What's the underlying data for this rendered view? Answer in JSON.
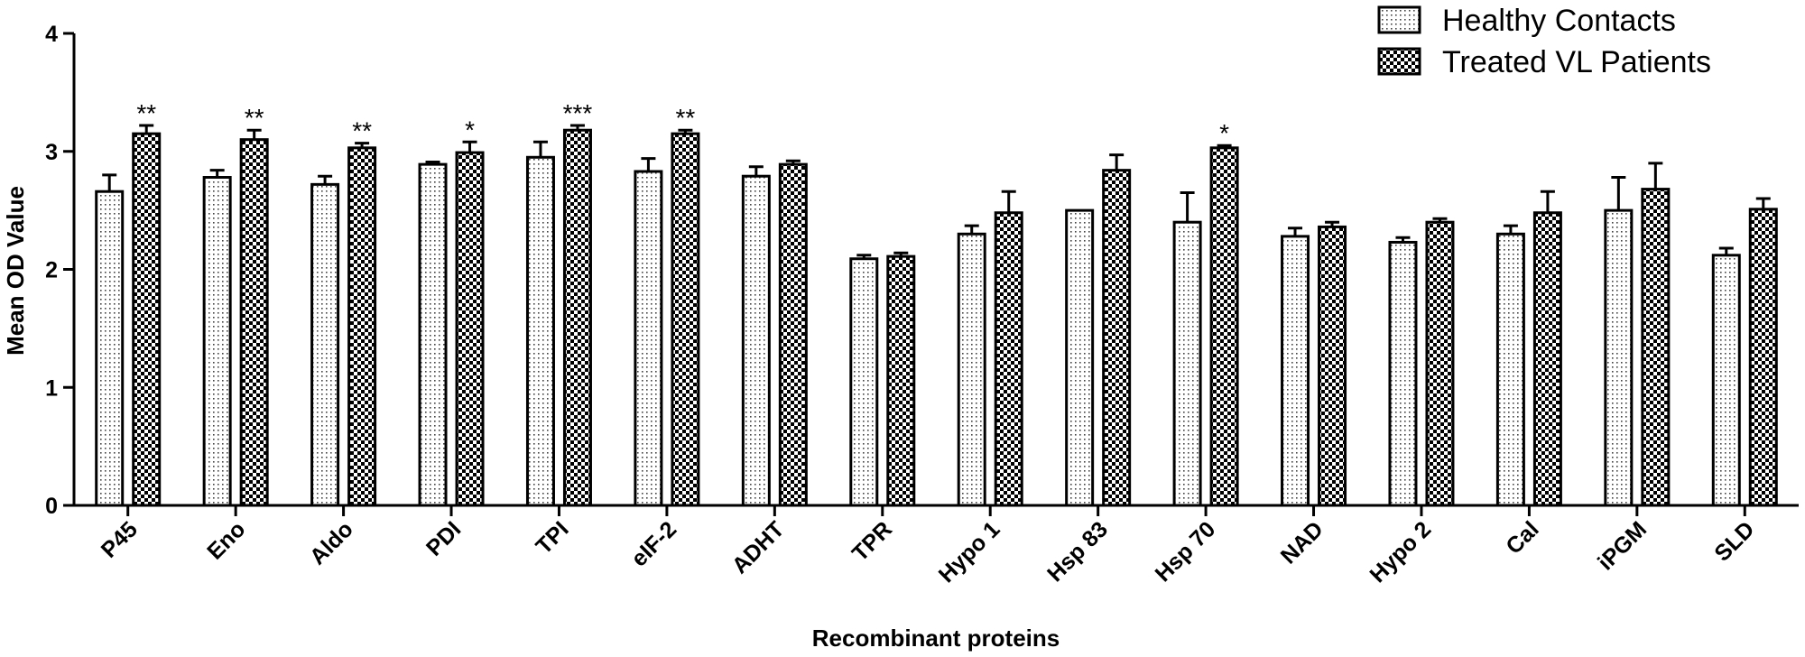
{
  "chart_data": {
    "type": "bar",
    "title": "",
    "xlabel": "Recombinant proteins",
    "ylabel": "Mean OD Value",
    "ylim": [
      0,
      4
    ],
    "yticks": [
      "0",
      "1",
      "2",
      "3",
      "4"
    ],
    "grid": false,
    "legend_position": "top-right",
    "categories": [
      "P45",
      "Eno",
      "Aldo",
      "PDI",
      "TPI",
      "eIF-2",
      "ADHT",
      "TPR",
      "Hypo 1",
      "Hsp 83",
      "Hsp 70",
      "NAD",
      "Hypo 2",
      "Cal",
      "iPGM",
      "SLD"
    ],
    "series": [
      {
        "name": "Healthy Contacts",
        "pattern": "dots",
        "values": [
          2.66,
          2.78,
          2.72,
          2.89,
          2.95,
          2.83,
          2.79,
          2.09,
          2.3,
          2.5,
          2.4,
          2.28,
          2.23,
          2.3,
          2.5,
          2.12
        ],
        "errors": [
          0.14,
          0.06,
          0.07,
          0.02,
          0.13,
          0.11,
          0.08,
          0.03,
          0.07,
          0.0,
          0.25,
          0.07,
          0.04,
          0.07,
          0.28,
          0.06
        ]
      },
      {
        "name": "Treated VL Patients",
        "pattern": "checker",
        "values": [
          3.15,
          3.1,
          3.03,
          2.99,
          3.18,
          3.15,
          2.89,
          2.11,
          2.48,
          2.84,
          3.03,
          2.36,
          2.4,
          2.48,
          2.68,
          2.51
        ],
        "errors": [
          0.07,
          0.08,
          0.04,
          0.09,
          0.04,
          0.03,
          0.03,
          0.03,
          0.18,
          0.13,
          0.02,
          0.04,
          0.03,
          0.18,
          0.22,
          0.09
        ]
      }
    ],
    "significance": [
      "**",
      "**",
      "**",
      "*",
      "***",
      "**",
      "",
      "",
      "",
      "",
      "*",
      "",
      "",
      "",
      "",
      ""
    ]
  }
}
